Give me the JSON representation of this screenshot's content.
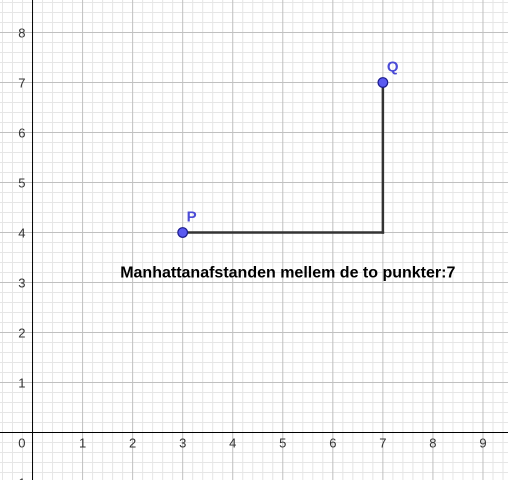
{
  "graph": {
    "x_ticks": [
      "1",
      "2",
      "3",
      "4",
      "5",
      "6",
      "7",
      "8",
      "9"
    ],
    "y_ticks": [
      "1",
      "2",
      "3",
      "4",
      "5",
      "6",
      "7",
      "8"
    ],
    "origin_label": "0",
    "bottom_partial_tick": "1",
    "colors": {
      "minor_grid": "#e6e6e6",
      "major_grid": "#c0c0c0",
      "axis": "#000000",
      "point_fill": "#5a5af0",
      "point_stroke": "#1a1a8c",
      "point_label": "#4b4bd6",
      "segment": "#333333"
    }
  },
  "chart_data": {
    "type": "scatter",
    "xlim": [
      -0.65,
      9.5
    ],
    "ylim": [
      -0.95,
      8.65
    ],
    "points": [
      {
        "name": "P",
        "x": 3,
        "y": 4
      },
      {
        "name": "Q",
        "x": 7,
        "y": 7
      }
    ],
    "path": [
      [
        3,
        4
      ],
      [
        7,
        4
      ],
      [
        7,
        7
      ]
    ],
    "annotation": {
      "text": "Manhattanafstanden mellem de to punkter:7",
      "x": 5.1,
      "y": 3.1
    }
  }
}
